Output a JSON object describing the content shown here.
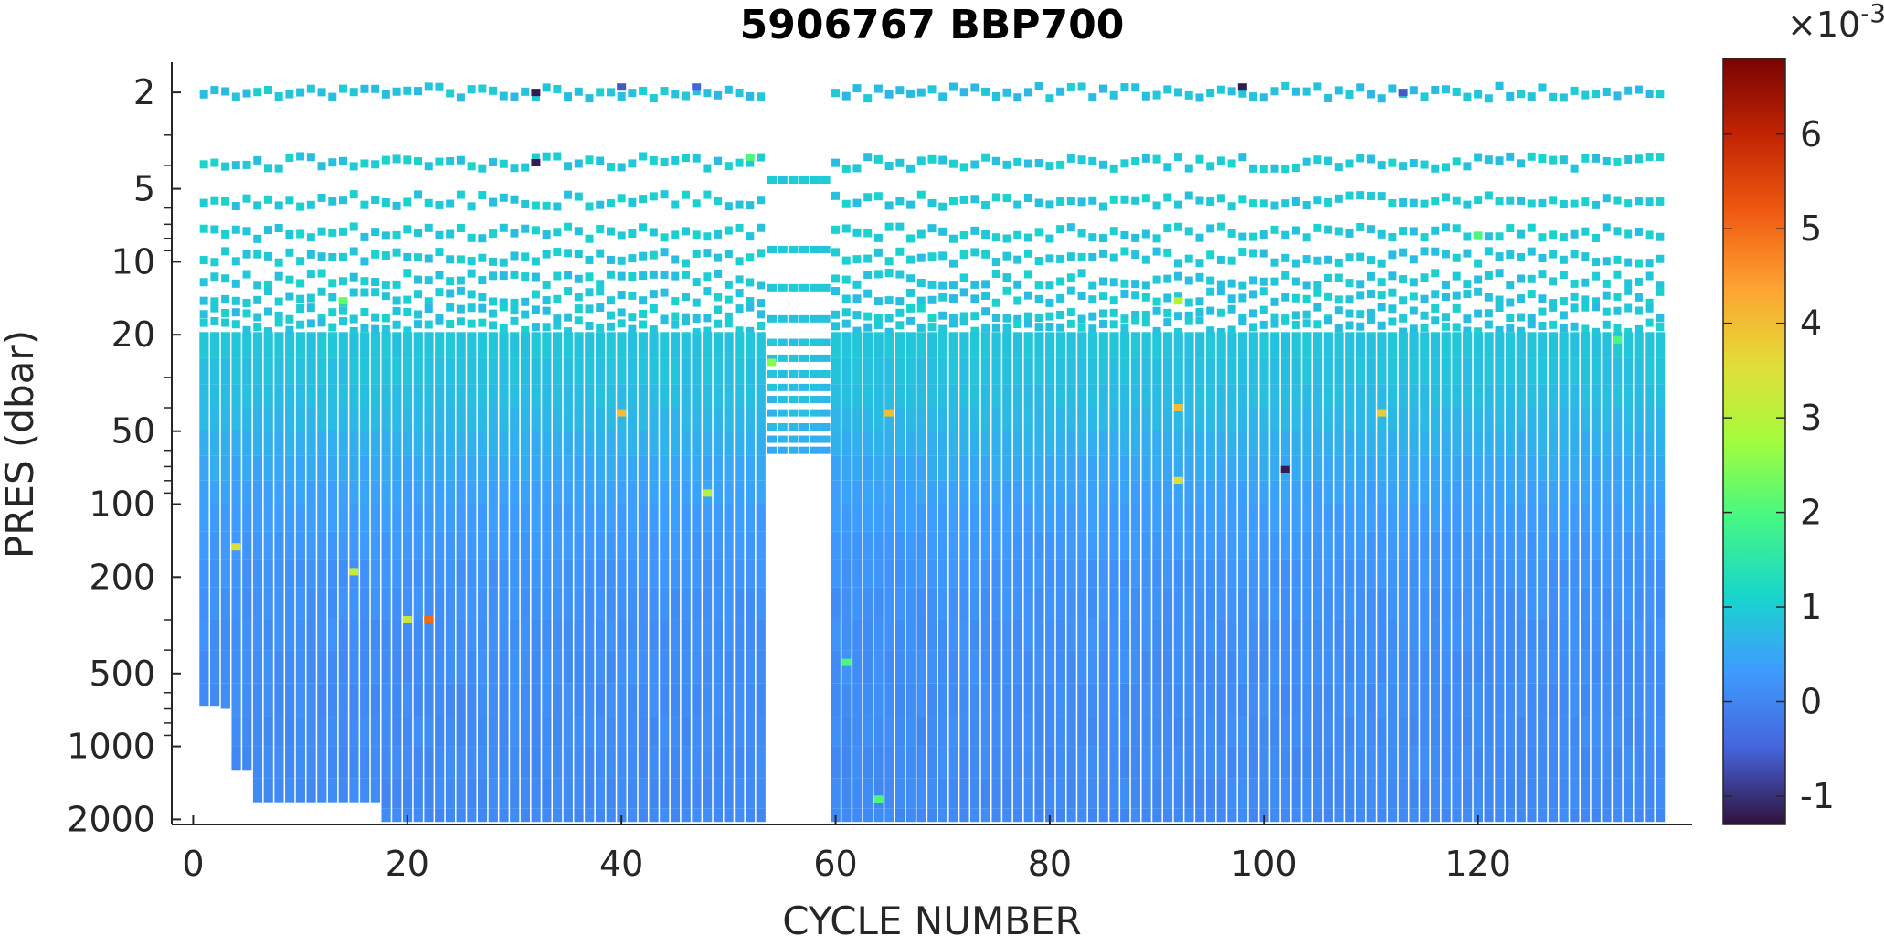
{
  "chart_data": {
    "type": "heatmap",
    "title": "5906767 BBP700",
    "xlabel": "CYCLE NUMBER",
    "ylabel": "PRES (dbar)",
    "xlim": [
      -2,
      140
    ],
    "ylim": [
      1.5,
      2100
    ],
    "y_scale": "log",
    "y_reversed": true,
    "x_ticks": [
      0,
      20,
      40,
      60,
      80,
      100,
      120
    ],
    "x_tick_labels": [
      "0",
      "20",
      "40",
      "60",
      "80",
      "100",
      "120"
    ],
    "y_ticks": [
      2,
      5,
      10,
      20,
      50,
      100,
      200,
      500,
      1000,
      2000
    ],
    "y_tick_labels": [
      "2",
      "5",
      "10",
      "20",
      "50",
      "100",
      "200",
      "500",
      "1000",
      "2000"
    ],
    "colorbar": {
      "colormap": "turbo",
      "range": [
        -1.3,
        6.8
      ],
      "ticks": [
        -1,
        0,
        1,
        2,
        3,
        4,
        5,
        6
      ],
      "tick_labels": [
        "-1",
        "0",
        "1",
        "2",
        "3",
        "4",
        "5",
        "6"
      ],
      "exponent_label_base": "×10",
      "exponent_label_power": "-3"
    },
    "cycles": {
      "first": 1,
      "last": 137,
      "missing": [
        54,
        55,
        56,
        57,
        58,
        59
      ]
    },
    "short_profile_cycles": {
      "cycles": [
        54,
        55,
        56,
        57,
        58,
        59
      ],
      "max_pressure": 60
    },
    "profile_max_pressure": [
      {
        "from": 1,
        "to": 2,
        "pres": 680
      },
      {
        "from": 3,
        "to": 3,
        "pres": 700
      },
      {
        "from": 4,
        "to": 5,
        "pres": 1250
      },
      {
        "from": 6,
        "to": 17,
        "pres": 1700
      },
      {
        "from": 18,
        "to": 53,
        "pres": 2050
      },
      {
        "from": 60,
        "to": 137,
        "pres": 2050
      }
    ],
    "value_profile": {
      "pres": [
        2,
        4,
        6,
        8,
        10,
        20,
        40,
        60,
        100,
        200,
        500,
        1000,
        2000
      ],
      "value": [
        0.85,
        0.95,
        0.95,
        0.95,
        0.92,
        0.9,
        0.75,
        0.55,
        0.35,
        0.18,
        0.1,
        0.07,
        0.05
      ]
    },
    "outliers": [
      {
        "cycle": 32,
        "pres": 2.0,
        "value": -1.2
      },
      {
        "cycle": 40,
        "pres": 1.9,
        "value": -0.6
      },
      {
        "cycle": 47,
        "pres": 1.9,
        "value": -0.5
      },
      {
        "cycle": 98,
        "pres": 1.9,
        "value": -1.2
      },
      {
        "cycle": 113,
        "pres": 2.0,
        "value": -0.6
      },
      {
        "cycle": 32,
        "pres": 3.9,
        "value": -1.2
      },
      {
        "cycle": 52,
        "pres": 3.7,
        "value": 2.0
      },
      {
        "cycle": 14,
        "pres": 14.5,
        "value": 2.2
      },
      {
        "cycle": 92,
        "pres": 14.5,
        "value": 3.0
      },
      {
        "cycle": 120,
        "pres": 7.8,
        "value": 2.0
      },
      {
        "cycle": 54,
        "pres": 26,
        "value": 2.5
      },
      {
        "cycle": 40,
        "pres": 42,
        "value": 4.0
      },
      {
        "cycle": 65,
        "pres": 42,
        "value": 4.0
      },
      {
        "cycle": 92,
        "pres": 40,
        "value": 4.0
      },
      {
        "cycle": 111,
        "pres": 42,
        "value": 3.8
      },
      {
        "cycle": 102,
        "pres": 72,
        "value": -1.2
      },
      {
        "cycle": 92,
        "pres": 80,
        "value": 3.5
      },
      {
        "cycle": 48,
        "pres": 90,
        "value": 3.0
      },
      {
        "cycle": 4,
        "pres": 150,
        "value": 3.5
      },
      {
        "cycle": 15,
        "pres": 190,
        "value": 3.2
      },
      {
        "cycle": 20,
        "pres": 300,
        "value": 3.2
      },
      {
        "cycle": 22,
        "pres": 300,
        "value": 5.0
      },
      {
        "cycle": 61,
        "pres": 450,
        "value": 2.0
      },
      {
        "cycle": 64,
        "pres": 1650,
        "value": 2.0
      },
      {
        "cycle": 133,
        "pres": 21,
        "value": 2.0
      }
    ]
  }
}
